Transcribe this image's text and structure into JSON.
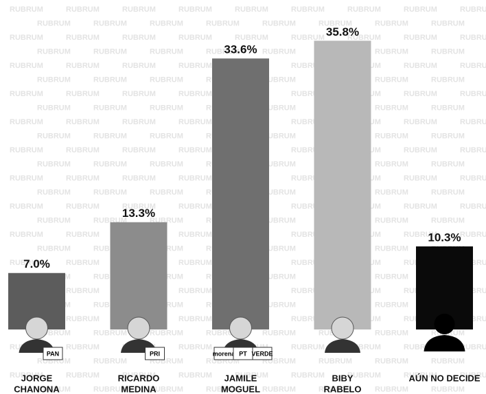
{
  "chart_data": {
    "type": "bar",
    "watermark": "RUBRUM",
    "categories": [
      [
        "JORGE",
        "CHANONA"
      ],
      [
        "RICARDO",
        "MEDINA"
      ],
      [
        "JAMILE",
        "MOGUEL"
      ],
      [
        "BIBY",
        "RABELO"
      ],
      [
        "AÚN NO DECIDE"
      ]
    ],
    "values": [
      7.0,
      13.3,
      33.6,
      35.8,
      10.3
    ],
    "value_labels": [
      "7.0%",
      "13.3%",
      "33.6%",
      "35.8%",
      "10.3%"
    ],
    "colors": [
      "#5c5c5c",
      "#8c8c8c",
      "#6f6f6f",
      "#b8b8b8",
      "#0a0a0a"
    ],
    "parties": [
      [
        "PAN"
      ],
      [
        "PRI"
      ],
      [
        "morena",
        "PT",
        "VERDE"
      ],
      [],
      []
    ],
    "ylim": [
      0,
      40
    ]
  }
}
